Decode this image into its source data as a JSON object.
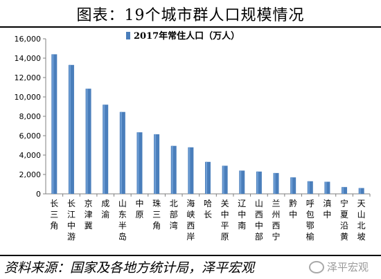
{
  "header": {
    "title": "图表：19个城市群人口规模情况"
  },
  "footer": {
    "source": "资料来源：国家及各地方统计局，泽平宏观",
    "watermark": "泽平宏观"
  },
  "colors": {
    "bar": "#4a7ebb",
    "bar_highlight": "#6f9fd6",
    "axis": "#7f7f7f"
  },
  "chart_data": {
    "type": "bar",
    "categories": [
      "长三角",
      "长江中游",
      "京津冀",
      "成渝",
      "山东半岛",
      "中原",
      "珠三角",
      "北部湾",
      "海峡西岸",
      "哈长",
      "关中平原",
      "辽中南",
      "山西中部",
      "兰州西宁",
      "黔中",
      "呼包鄂榆",
      "滇中",
      "宁夏沿黄",
      "天山北坡"
    ],
    "series": [
      {
        "name": "2017年常住人口（万人）",
        "values": [
          14400,
          13300,
          10850,
          9200,
          8450,
          6350,
          6150,
          4950,
          4800,
          3300,
          2900,
          2400,
          2300,
          2150,
          1700,
          1300,
          1250,
          700,
          600
        ]
      }
    ],
    "yticks": [
      "0",
      "2,000",
      "4,000",
      "6,000",
      "8,000",
      "10,000",
      "12,000",
      "14,000",
      "16,000"
    ],
    "ylim": [
      0,
      16000
    ],
    "legend": "top-center",
    "grid": false
  }
}
